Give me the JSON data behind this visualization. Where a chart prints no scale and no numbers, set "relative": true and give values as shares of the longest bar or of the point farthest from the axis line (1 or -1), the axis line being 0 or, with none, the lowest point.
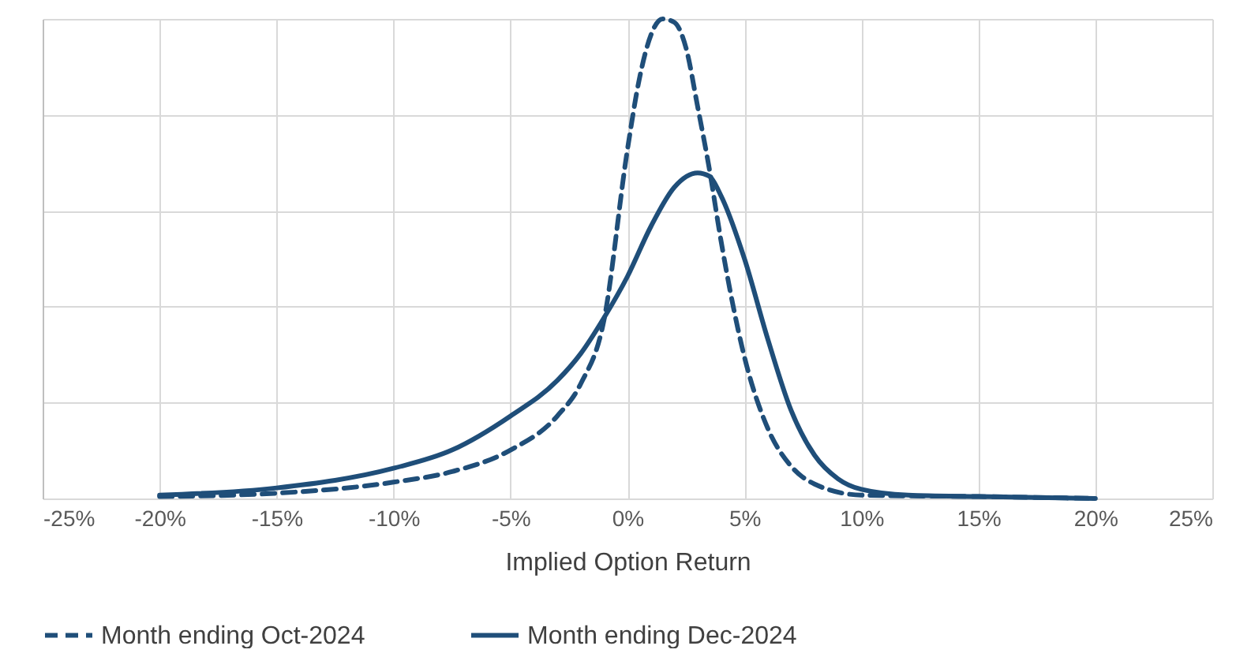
{
  "chart_data": {
    "type": "line",
    "xlabel": "Implied Option Return",
    "relative": true,
    "grid": true,
    "legend": "bottom",
    "xlim": [
      -25,
      25
    ],
    "xticks": [
      {
        "value": -25,
        "label": "-25%"
      },
      {
        "value": -20,
        "label": "-20%"
      },
      {
        "value": -15,
        "label": "-15%"
      },
      {
        "value": -10,
        "label": "-10%"
      },
      {
        "value": -5,
        "label": "-5%"
      },
      {
        "value": 0,
        "label": "0%"
      },
      {
        "value": 5,
        "label": "5%"
      },
      {
        "value": 10,
        "label": "10%"
      },
      {
        "value": 15,
        "label": "15%"
      },
      {
        "value": 20,
        "label": "20%"
      },
      {
        "value": 25,
        "label": "25%"
      }
    ],
    "series": [
      {
        "name": "Month ending Oct-2024",
        "color": "#1f4e79",
        "line_style": "dashed",
        "x": [
          -20,
          -15,
          -10,
          -7.5,
          -5,
          -3,
          -2,
          -1,
          0,
          0.5,
          1,
          1.5,
          2,
          2.5,
          3,
          3.5,
          4,
          5,
          6,
          7,
          8,
          10,
          15,
          20
        ],
        "values": [
          0.004,
          0.011,
          0.034,
          0.056,
          0.101,
          0.172,
          0.239,
          0.373,
          0.728,
          0.873,
          0.966,
          1,
          0.993,
          0.94,
          0.817,
          0.687,
          0.537,
          0.295,
          0.146,
          0.067,
          0.03,
          0.007,
          0.004,
          0
        ]
      },
      {
        "name": "Month ending Dec-2024",
        "color": "#1f4e79",
        "line_style": "solid",
        "x": [
          -20,
          -15,
          -10,
          -7.5,
          -5,
          -3,
          -2,
          -1,
          0,
          1,
          2,
          3,
          3.5,
          4,
          5,
          6,
          7,
          8,
          9,
          10,
          12,
          15,
          20
        ],
        "values": [
          0.007,
          0.022,
          0.063,
          0.101,
          0.172,
          0.246,
          0.302,
          0.377,
          0.463,
          0.567,
          0.649,
          0.679,
          0.672,
          0.631,
          0.5,
          0.332,
          0.183,
          0.09,
          0.041,
          0.019,
          0.007,
          0.004,
          0
        ]
      }
    ]
  }
}
